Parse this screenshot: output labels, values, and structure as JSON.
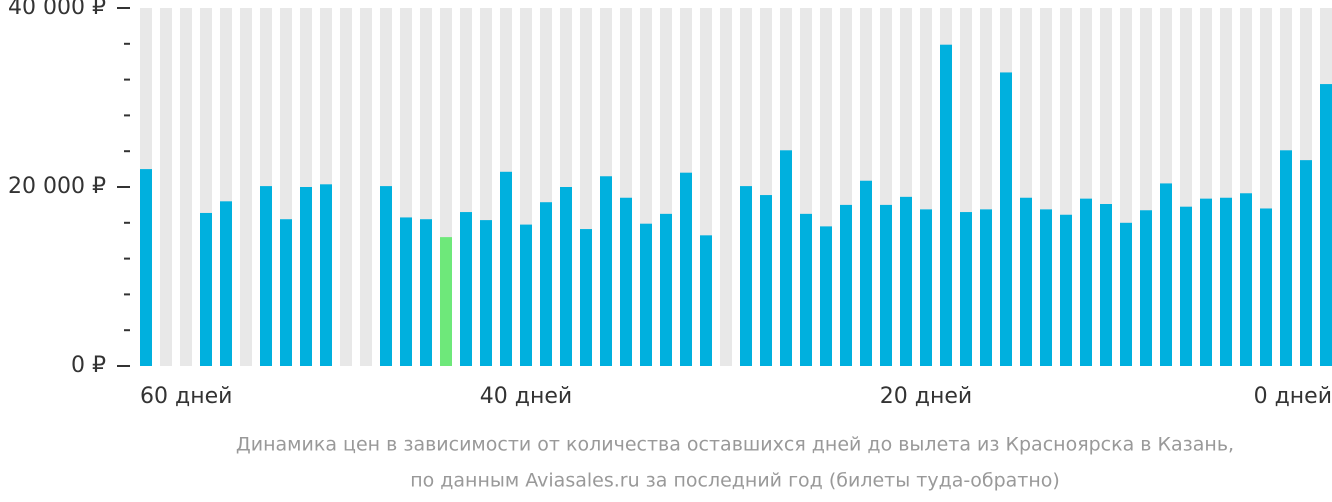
{
  "chart_data": {
    "type": "bar",
    "caption": [
      "Динамика цен в зависимости от количества оставшихся дней до вылета из Красноярска в Казань,",
      "по данным Aviasales.ru за последний год (билеты туда-обратно)"
    ],
    "categories": [
      "60 дней",
      null,
      null,
      null,
      null,
      null,
      null,
      null,
      null,
      null,
      null,
      null,
      null,
      null,
      null,
      null,
      null,
      null,
      null,
      "40 дней",
      null,
      null,
      null,
      null,
      null,
      null,
      null,
      null,
      null,
      null,
      null,
      null,
      null,
      null,
      null,
      null,
      null,
      null,
      null,
      "20 дней",
      null,
      null,
      null,
      null,
      null,
      null,
      null,
      null,
      null,
      null,
      null,
      null,
      null,
      null,
      null,
      null,
      null,
      null,
      null,
      "0 дней"
    ],
    "values": [
      22000,
      null,
      null,
      17100,
      18400,
      null,
      20100,
      16400,
      20000,
      20300,
      null,
      null,
      20100,
      16600,
      16400,
      14400,
      17200,
      16300,
      21700,
      15800,
      18300,
      20000,
      15300,
      21200,
      18800,
      15900,
      17000,
      21600,
      14600,
      null,
      20100,
      19100,
      24100,
      17000,
      15600,
      18000,
      20700,
      18000,
      18900,
      17500,
      35900,
      17200,
      17500,
      32800,
      18800,
      17500,
      16900,
      18700,
      18100,
      16000,
      17400,
      20400,
      17800,
      18700,
      18800,
      19300,
      17600,
      24100,
      23000,
      31500
    ],
    "colors": [
      "#00b0de",
      "#00b0de",
      "#00b0de",
      "#00b0de",
      "#00b0de",
      "#00b0de",
      "#00b0de",
      "#00b0de",
      "#00b0de",
      "#00b0de",
      "#00b0de",
      "#00b0de",
      "#00b0de",
      "#00b0de",
      "#00b0de",
      "#6ee87a",
      "#00b0de",
      "#00b0de",
      "#00b0de",
      "#00b0de",
      "#00b0de",
      "#00b0de",
      "#00b0de",
      "#00b0de",
      "#00b0de",
      "#00b0de",
      "#00b0de",
      "#00b0de",
      "#00b0de",
      "#00b0de",
      "#00b0de",
      "#00b0de",
      "#00b0de",
      "#00b0de",
      "#00b0de",
      "#00b0de",
      "#00b0de",
      "#00b0de",
      "#00b0de",
      "#00b0de",
      "#00b0de",
      "#00b0de",
      "#00b0de",
      "#00b0de",
      "#00b0de",
      "#00b0de",
      "#00b0de",
      "#00b0de",
      "#00b0de",
      "#00b0de",
      "#00b0de",
      "#00b0de",
      "#00b0de",
      "#00b0de",
      "#00b0de",
      "#00b0de",
      "#00b0de",
      "#00b0de",
      "#00b0de",
      "#00b0de"
    ],
    "stripe_color": "#e8e8e8",
    "ylim": [
      0,
      40000
    ],
    "yticks": [
      {
        "value": 0,
        "label": "0 ₽"
      },
      {
        "value": 20000,
        "label": "20 000 ₽"
      },
      {
        "value": 40000,
        "label": "40 000 ₽"
      }
    ],
    "minor_yticks": [
      4000,
      8000,
      12000,
      16000,
      24000,
      28000,
      32000,
      36000
    ]
  }
}
